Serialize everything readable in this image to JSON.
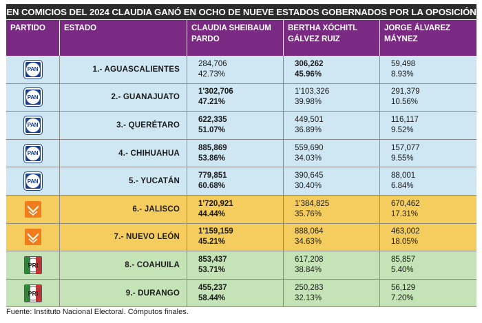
{
  "title": "EN COMICIOS DEL 2024 CLAUDIA GANÓ EN OCHO DE NUEVE ESTADOS GOBERNADOS POR LA OPOSICIÓN",
  "headers": {
    "party": "PARTIDO",
    "state": "ESTADO",
    "c1_line1": "CLAUDIA SHEIBAUM",
    "c1_line2": "PARDO",
    "c2_line1": "BERTHA XÓCHITL",
    "c2_line2": "GÁLVEZ RUIZ",
    "c3_line1": "JORGE ÁLVAREZ",
    "c3_line2": "MÁYNEZ"
  },
  "colors": {
    "title_bg": "#2b2b2b",
    "header_bg": "#7a2a82",
    "pan_row": "#cfe6f3",
    "mc_row": "#f4cd5e",
    "pri_row": "#c4e3b6",
    "pan_blue": "#1b3f93",
    "mc_orange": "#f07d1a",
    "pri_green": "#2e8b3a",
    "pri_red": "#d32f2f"
  },
  "rows": [
    {
      "party": "PAN",
      "party_icon": "pan-logo-icon",
      "state": "1.- AGUASCALIENTES",
      "v1": "284,706",
      "p1": "42.73%",
      "v2": "306,262",
      "p2": "45.96%",
      "v3": "59,498",
      "p3": "8.93%",
      "winner": "v2"
    },
    {
      "party": "PAN",
      "party_icon": "pan-logo-icon",
      "state": "2.- GUANAJUATO",
      "v1": "1'302,706",
      "p1": "47.21%",
      "v2": "1'103,326",
      "p2": "39.98%",
      "v3": "291,379",
      "p3": "10.56%",
      "winner": "v1"
    },
    {
      "party": "PAN",
      "party_icon": "pan-logo-icon",
      "state": "3.- QUERÉTARO",
      "v1": "622,335",
      "p1": "51.07%",
      "v2": "449,501",
      "p2": "36.89%",
      "v3": "116,117",
      "p3": "9.52%",
      "winner": "v1"
    },
    {
      "party": "PAN",
      "party_icon": "pan-logo-icon",
      "state": "4.- CHIHUAHUA",
      "v1": "885,869",
      "p1": "53.86%",
      "v2": "559,690",
      "p2": "34.03%",
      "v3": "157,077",
      "p3": "9.55%",
      "winner": "v1"
    },
    {
      "party": "PAN",
      "party_icon": "pan-logo-icon",
      "state": "5.- YUCATÁN",
      "v1": "779,851",
      "p1": "60.68%",
      "v2": "390,645",
      "p2": "30.40%",
      "v3": "88,001",
      "p3": "6.84%",
      "winner": "v1"
    },
    {
      "party": "MC",
      "party_icon": "mc-logo-icon",
      "state": "6.- JALISCO",
      "v1": "1'720,921",
      "p1": "44.44%",
      "v2": "1'384,825",
      "p2": "35.76%",
      "v3": "670,462",
      "p3": "17.31%",
      "winner": "v1"
    },
    {
      "party": "MC",
      "party_icon": "mc-logo-icon",
      "state": "7.- NUEVO LEÓN",
      "v1": "1'159,159",
      "p1": "45.21%",
      "v2": "888,064",
      "p2": "34.63%",
      "v3": "463,002",
      "p3": "18.05%",
      "winner": "v1"
    },
    {
      "party": "PRI",
      "party_icon": "pri-logo-icon",
      "state": "8.- COAHUILA",
      "v1": "853,437",
      "p1": "53.71%",
      "v2": "617,208",
      "p2": "38.84%",
      "v3": "85,857",
      "p3": "5.40%",
      "winner": "v1"
    },
    {
      "party": "PRI",
      "party_icon": "pri-logo-icon",
      "state": "9.- DURANGO",
      "v1": "455,237",
      "p1": "58.44%",
      "v2": "250,283",
      "p2": "32.13%",
      "v3": "56,129",
      "p3": "7.20%",
      "winner": "v1"
    }
  ],
  "footer": "Fuente: Instituto Nacional Electoral. Cómputos finales."
}
